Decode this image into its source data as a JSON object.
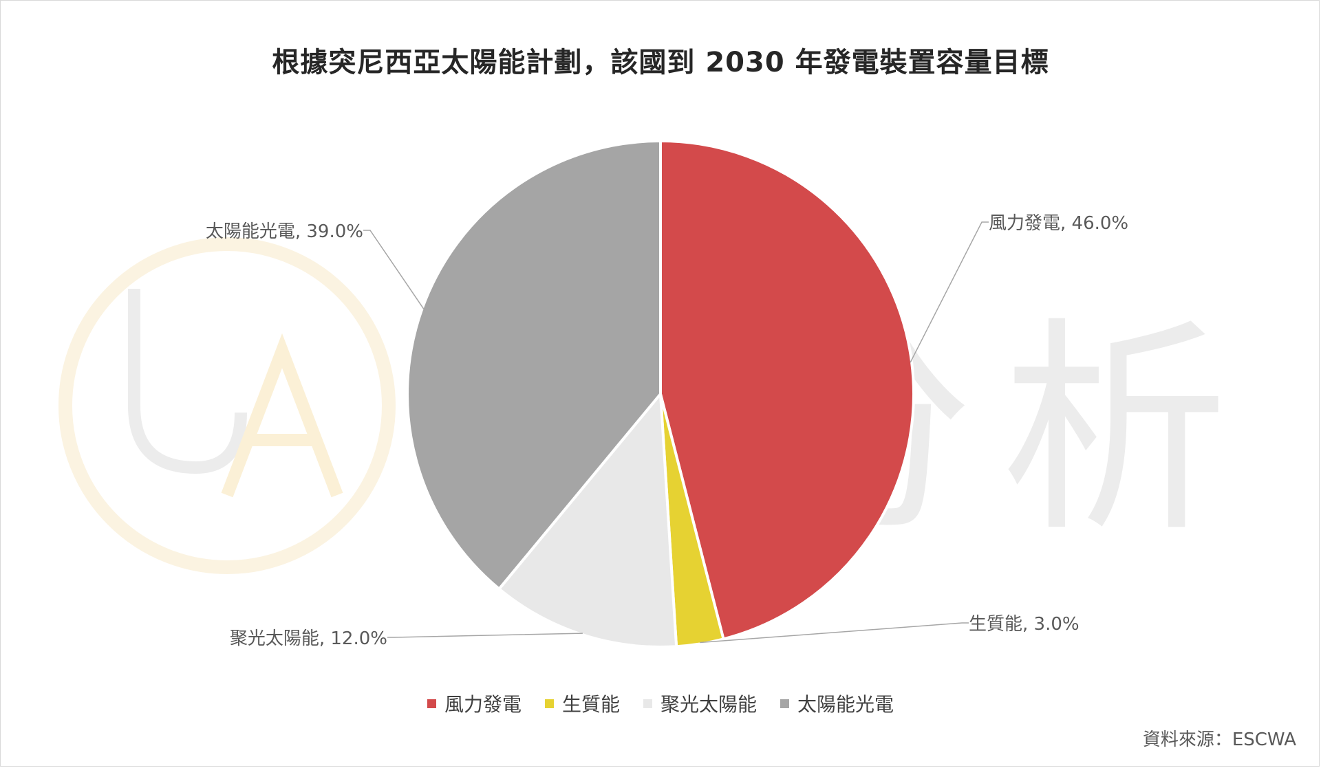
{
  "chart_data": {
    "type": "pie",
    "title": "根據突尼西亞太陽能計劃，該國到 2030 年發電裝置容量目標",
    "slices": [
      {
        "label": "風力發電",
        "value": 46.0,
        "data_label": "風力發電, 46.0%",
        "color": "#d34a4b"
      },
      {
        "label": "生質能",
        "value": 3.0,
        "data_label": "生質能, 3.0%",
        "color": "#e6d232"
      },
      {
        "label": "聚光太陽能",
        "value": 12.0,
        "data_label": "聚光太陽能, 12.0%",
        "color": "#e8e8e8"
      },
      {
        "label": "太陽能光電",
        "value": 39.0,
        "data_label": "太陽能光電, 39.0%",
        "color": "#a5a5a5"
      }
    ],
    "legend": {
      "placement": "bottom"
    },
    "source": "資料來源：ESCWA"
  },
  "watermark": {
    "text": "優分析",
    "logo": "UA"
  }
}
